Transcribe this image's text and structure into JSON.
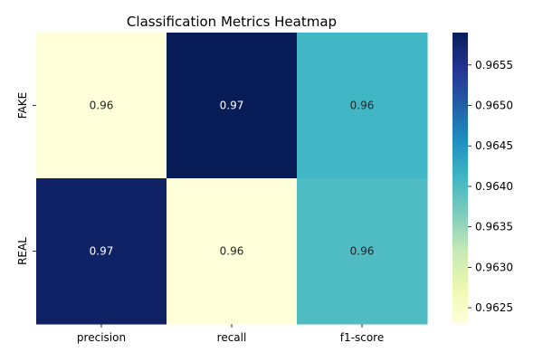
{
  "chart_data": {
    "type": "heatmap",
    "title": "Classification Metrics Heatmap",
    "xlabel": "",
    "ylabel": "",
    "columns": [
      "precision",
      "recall",
      "f1-score"
    ],
    "rows": [
      "FAKE",
      "REAL"
    ],
    "values": [
      [
        0.9623,
        0.9659,
        0.9641
      ],
      [
        0.9658,
        0.9623,
        0.964
      ]
    ],
    "annotations": [
      [
        "0.96",
        "0.97",
        "0.96"
      ],
      [
        "0.97",
        "0.96",
        "0.96"
      ]
    ],
    "colormap": "YlGnBu",
    "colorbar": {
      "range": [
        0.9623,
        0.9659
      ],
      "ticks": [
        0.9625,
        0.963,
        0.9635,
        0.964,
        0.9645,
        0.965,
        0.9655
      ],
      "tick_labels": [
        "0.9625",
        "0.9630",
        "0.9635",
        "0.9640",
        "0.9645",
        "0.9650",
        "0.9655"
      ]
    }
  }
}
